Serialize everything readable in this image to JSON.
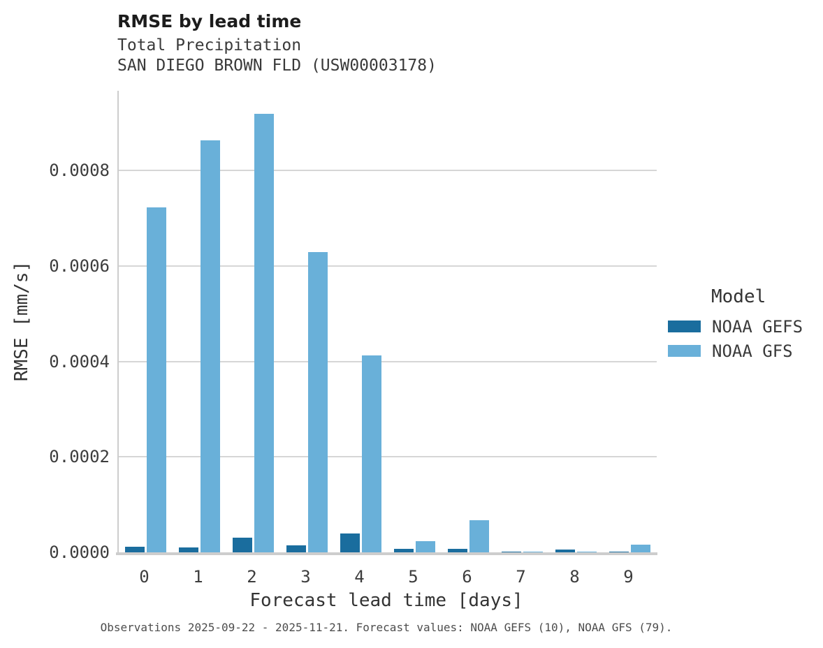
{
  "chart_data": {
    "type": "bar",
    "title": "RMSE by lead time",
    "subtitle": "Total Precipitation",
    "station": "SAN DIEGO BROWN FLD (USW00003178)",
    "caption": "Observations 2025-09-22 - 2025-11-21. Forecast values: NOAA GEFS (10), NOAA GFS (79).",
    "xlabel": "Forecast lead time [days]",
    "ylabel": "RMSE [mm/s]",
    "categories": [
      "0",
      "1",
      "2",
      "3",
      "4",
      "5",
      "6",
      "7",
      "8",
      "9"
    ],
    "series": [
      {
        "name": "NOAA GEFS",
        "color": "#1a6d9e",
        "values": [
          1.2e-05,
          1e-05,
          3e-05,
          1.5e-05,
          4e-05,
          7e-06,
          8e-06,
          1e-06,
          6e-06,
          1e-06
        ]
      },
      {
        "name": "NOAA GFS",
        "color": "#69b0d9",
        "values": [
          0.000722,
          0.000863,
          0.000918,
          0.000629,
          0.000413,
          2.4e-05,
          6.8e-05,
          1e-06,
          2e-06,
          1.6e-05
        ]
      }
    ],
    "ylim": [
      0,
      0.000967
    ],
    "ytick_values": [
      0,
      0.0002,
      0.0004,
      0.0006,
      0.0008
    ],
    "ytick_labels": [
      "0.0000",
      "0.0002",
      "0.0004",
      "0.0006",
      "0.0008"
    ],
    "grid": true,
    "legend": {
      "title": "Model",
      "position": "right"
    }
  }
}
